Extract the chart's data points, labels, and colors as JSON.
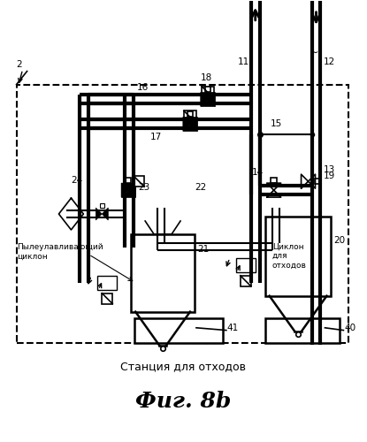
{
  "title": "Фиг. 8b",
  "subtitle": "Станция для отходов",
  "label_2": "2",
  "background_color": "#ffffff",
  "line_color": "#000000",
  "label_pyle": "Пылеулавливающий\nциклон",
  "label_cyklon": "Циклон\nдля\nотходов"
}
